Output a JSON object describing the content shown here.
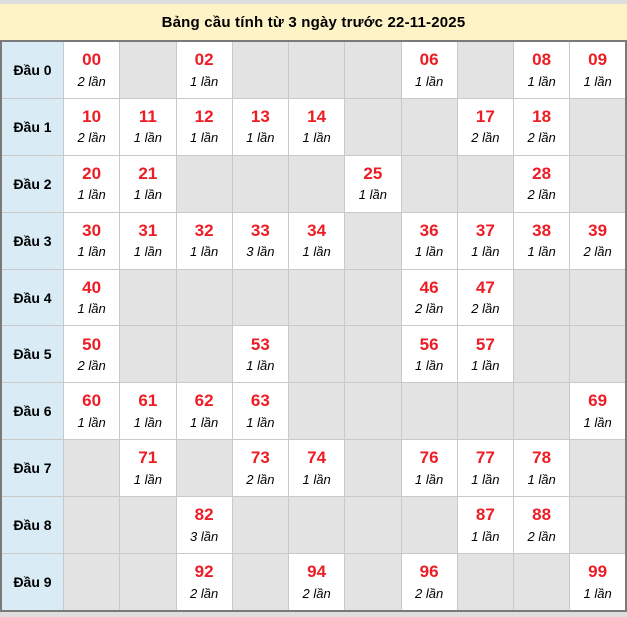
{
  "title": "Bảng cầu tính từ 3 ngày trước 22-11-2025",
  "colors": {
    "page_bg": "#dedede",
    "title_bg": "#fdf3c6",
    "label_bg": "#d9ecf6",
    "empty_bg": "#e3e3e3",
    "cell_bg": "#ffffff",
    "grid_border": "#c9c9c9",
    "outer_border": "#7a7a7a",
    "number_red": "#ee1c25"
  },
  "chart_data": {
    "type": "table",
    "title": "Bảng cầu tính từ 3 ngày trước 22-11-2025",
    "row_labels": [
      "Đầu 0",
      "Đầu 1",
      "Đầu 2",
      "Đầu 3",
      "Đầu 4",
      "Đầu 5",
      "Đầu 6",
      "Đầu 7",
      "Đầu 8",
      "Đầu 9"
    ],
    "columns_per_row": 10,
    "rows": [
      {
        "label": "Đầu 0",
        "cells": [
          {
            "number": "00",
            "count": "2 lần"
          },
          null,
          {
            "number": "02",
            "count": "1 lần"
          },
          null,
          null,
          null,
          {
            "number": "06",
            "count": "1 lần"
          },
          null,
          {
            "number": "08",
            "count": "1 lần"
          },
          {
            "number": "09",
            "count": "1 lần"
          }
        ]
      },
      {
        "label": "Đầu 1",
        "cells": [
          {
            "number": "10",
            "count": "2 lần"
          },
          {
            "number": "11",
            "count": "1 lần"
          },
          {
            "number": "12",
            "count": "1 lần"
          },
          {
            "number": "13",
            "count": "1 lần"
          },
          {
            "number": "14",
            "count": "1 lần"
          },
          null,
          null,
          {
            "number": "17",
            "count": "2 lần"
          },
          {
            "number": "18",
            "count": "2 lần"
          },
          null
        ]
      },
      {
        "label": "Đầu 2",
        "cells": [
          {
            "number": "20",
            "count": "1 lần"
          },
          {
            "number": "21",
            "count": "1 lần"
          },
          null,
          null,
          null,
          {
            "number": "25",
            "count": "1 lần"
          },
          null,
          null,
          {
            "number": "28",
            "count": "2 lần"
          },
          null
        ]
      },
      {
        "label": "Đầu 3",
        "cells": [
          {
            "number": "30",
            "count": "1 lần"
          },
          {
            "number": "31",
            "count": "1 lần"
          },
          {
            "number": "32",
            "count": "1 lần"
          },
          {
            "number": "33",
            "count": "3 lần"
          },
          {
            "number": "34",
            "count": "1 lần"
          },
          null,
          {
            "number": "36",
            "count": "1 lần"
          },
          {
            "number": "37",
            "count": "1 lần"
          },
          {
            "number": "38",
            "count": "1 lần"
          },
          {
            "number": "39",
            "count": "2 lần"
          }
        ]
      },
      {
        "label": "Đầu 4",
        "cells": [
          {
            "number": "40",
            "count": "1 lần"
          },
          null,
          null,
          null,
          null,
          null,
          {
            "number": "46",
            "count": "2 lần"
          },
          {
            "number": "47",
            "count": "2 lần"
          },
          null,
          null
        ]
      },
      {
        "label": "Đầu 5",
        "cells": [
          {
            "number": "50",
            "count": "2 lần"
          },
          null,
          null,
          {
            "number": "53",
            "count": "1 lần"
          },
          null,
          null,
          {
            "number": "56",
            "count": "1 lần"
          },
          {
            "number": "57",
            "count": "1 lần"
          },
          null,
          null
        ]
      },
      {
        "label": "Đầu 6",
        "cells": [
          {
            "number": "60",
            "count": "1 lần"
          },
          {
            "number": "61",
            "count": "1 lần"
          },
          {
            "number": "62",
            "count": "1 lần"
          },
          {
            "number": "63",
            "count": "1 lần"
          },
          null,
          null,
          null,
          null,
          null,
          {
            "number": "69",
            "count": "1 lần"
          }
        ]
      },
      {
        "label": "Đầu 7",
        "cells": [
          null,
          {
            "number": "71",
            "count": "1 lần"
          },
          null,
          {
            "number": "73",
            "count": "2 lần"
          },
          {
            "number": "74",
            "count": "1 lần"
          },
          null,
          {
            "number": "76",
            "count": "1 lần"
          },
          {
            "number": "77",
            "count": "1 lần"
          },
          {
            "number": "78",
            "count": "1 lần"
          },
          null
        ]
      },
      {
        "label": "Đầu 8",
        "cells": [
          null,
          null,
          {
            "number": "82",
            "count": "3 lần"
          },
          null,
          null,
          null,
          null,
          {
            "number": "87",
            "count": "1 lần"
          },
          {
            "number": "88",
            "count": "2 lần"
          },
          null
        ]
      },
      {
        "label": "Đầu 9",
        "cells": [
          null,
          null,
          {
            "number": "92",
            "count": "2 lần"
          },
          null,
          {
            "number": "94",
            "count": "2 lần"
          },
          null,
          {
            "number": "96",
            "count": "2 lần"
          },
          null,
          null,
          {
            "number": "99",
            "count": "1 lần"
          }
        ]
      }
    ]
  }
}
